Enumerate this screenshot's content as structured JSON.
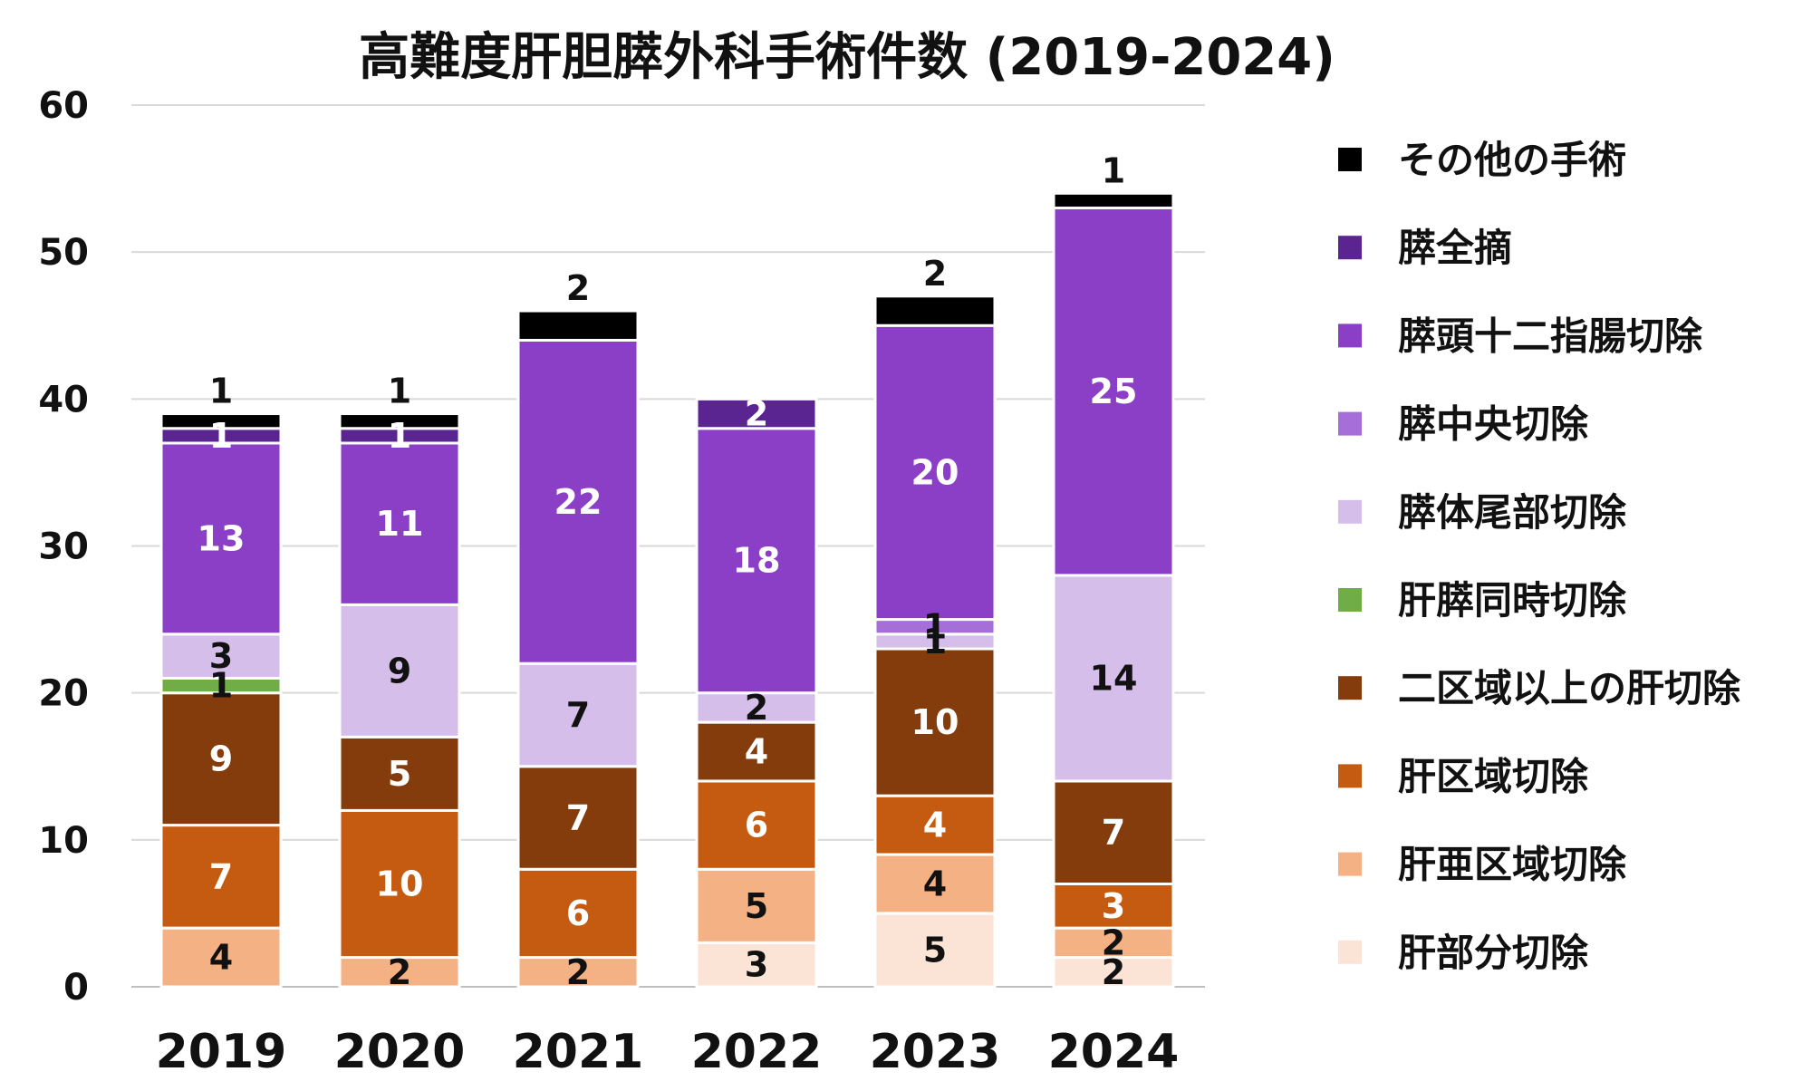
{
  "chart_data": {
    "type": "bar",
    "stacked": true,
    "title": "高難度肝胆膵外科手術件数 (2019-2024)",
    "xlabel": "",
    "ylabel": "",
    "ylim": [
      0,
      60
    ],
    "yticks": [
      0,
      10,
      20,
      30,
      40,
      50,
      60
    ],
    "grid": true,
    "legend_position": "right",
    "categories": [
      "2019",
      "2020",
      "2021",
      "2022",
      "2023",
      "2024"
    ],
    "series": [
      {
        "name": "肝部分切除",
        "color": "#FBE3D6",
        "values": [
          0,
          0,
          0,
          3,
          5,
          2
        ]
      },
      {
        "name": "肝亜区域切除",
        "color": "#F4B183",
        "values": [
          4,
          2,
          2,
          5,
          4,
          2
        ]
      },
      {
        "name": "肝区域切除",
        "color": "#C55A11",
        "values": [
          7,
          10,
          6,
          6,
          4,
          3
        ]
      },
      {
        "name": "二区域以上の肝切除",
        "color": "#843C0C",
        "values": [
          9,
          5,
          7,
          4,
          10,
          7
        ]
      },
      {
        "name": "肝膵同時切除",
        "color": "#70AD47",
        "values": [
          1,
          0,
          0,
          0,
          0,
          0
        ]
      },
      {
        "name": "膵体尾部切除",
        "color": "#D5BEEA",
        "values": [
          3,
          9,
          7,
          2,
          1,
          14
        ]
      },
      {
        "name": "膵中央切除",
        "color": "#A66ED8",
        "values": [
          0,
          0,
          0,
          0,
          1,
          0
        ]
      },
      {
        "name": "膵頭十二指腸切除",
        "color": "#8B3FC6",
        "values": [
          13,
          11,
          22,
          18,
          20,
          25
        ]
      },
      {
        "name": "膵全摘",
        "color": "#5A2590",
        "values": [
          1,
          1,
          0,
          2,
          0,
          0
        ]
      },
      {
        "name": "その他の手術",
        "color": "#000000",
        "values": [
          1,
          1,
          2,
          0,
          2,
          1
        ]
      }
    ]
  }
}
